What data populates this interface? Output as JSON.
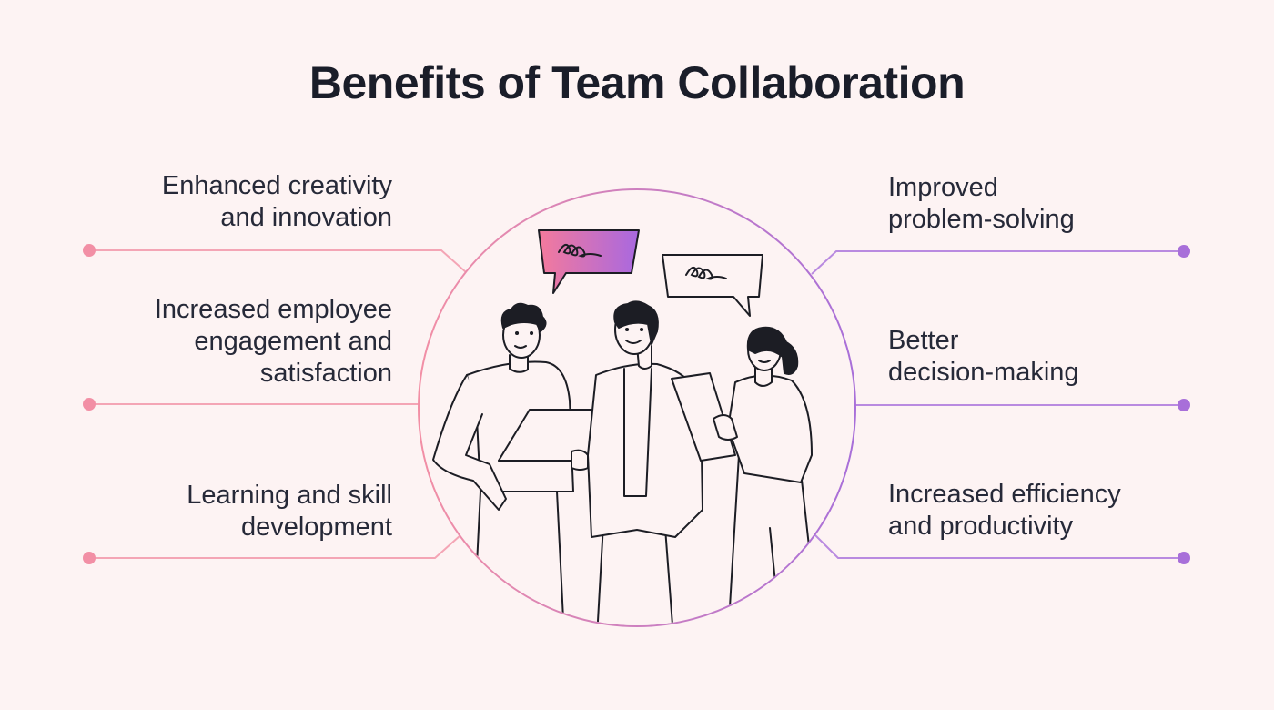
{
  "title": "Benefits of Team Collaboration",
  "benefits_left": [
    {
      "label": "Enhanced creativity\nand innovation"
    },
    {
      "label": "Increased employee\nengagement and\nsatisfaction"
    },
    {
      "label": "Learning and skill\ndevelopment"
    }
  ],
  "benefits_right": [
    {
      "label": "Improved\nproblem-solving"
    },
    {
      "label": "Better\ndecision-making"
    },
    {
      "label": "Increased efficiency\nand productivity"
    }
  ],
  "colors": {
    "background": "#fdf3f3",
    "left_accent": "#f28fa5",
    "right_accent": "#a86fd9",
    "gradient_start": "#f47a9c",
    "gradient_end": "#a868e0",
    "text": "#262938"
  },
  "illustration": {
    "icons": [
      "speech-bubble-gradient-icon",
      "speech-bubble-outline-icon",
      "three-people-illustration"
    ]
  }
}
